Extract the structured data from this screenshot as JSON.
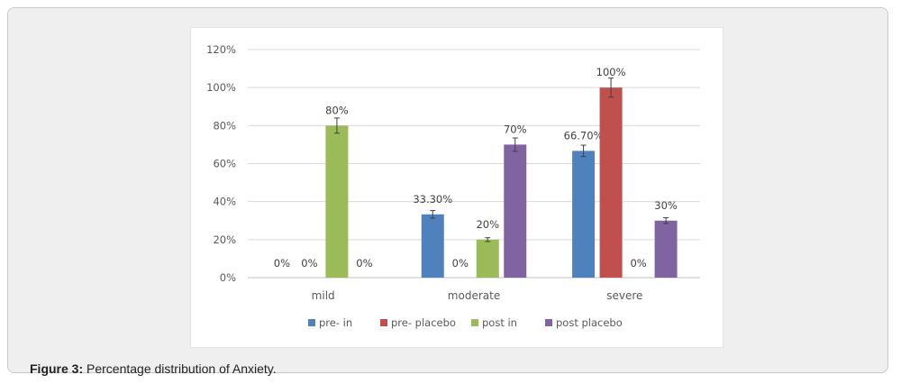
{
  "figure": {
    "caption_label": "Figure 3:",
    "caption_text": " Percentage distribution of Anxiety."
  },
  "chart_data": {
    "type": "bar",
    "categories": [
      "mild",
      "moderate",
      "severe"
    ],
    "series": [
      {
        "name": "pre- in",
        "color": "#4f81bd",
        "values": [
          0,
          33.3,
          66.7
        ],
        "labels": [
          "0%",
          "33.30%",
          "66.70%"
        ],
        "error": [
          0,
          2,
          3
        ]
      },
      {
        "name": "pre- placebo",
        "color": "#c0504d",
        "values": [
          0,
          0,
          100
        ],
        "labels": [
          "0%",
          "0%",
          "100%"
        ],
        "error": [
          0,
          0,
          5
        ]
      },
      {
        "name": "post in",
        "color": "#9bbb59",
        "values": [
          80,
          20,
          0
        ],
        "labels": [
          "80%",
          "20%",
          "0%"
        ],
        "error": [
          4,
          1,
          0
        ]
      },
      {
        "name": "post placebo",
        "color": "#8064a2",
        "values": [
          0,
          70,
          30
        ],
        "labels": [
          "0%",
          "70%",
          "30%"
        ],
        "error": [
          0,
          3.5,
          1.5
        ]
      }
    ],
    "ylim": [
      0,
      120
    ],
    "yticks": [
      "0%",
      "20%",
      "40%",
      "60%",
      "80%",
      "100%",
      "120%"
    ],
    "grid": true,
    "legend_position": "bottom"
  }
}
